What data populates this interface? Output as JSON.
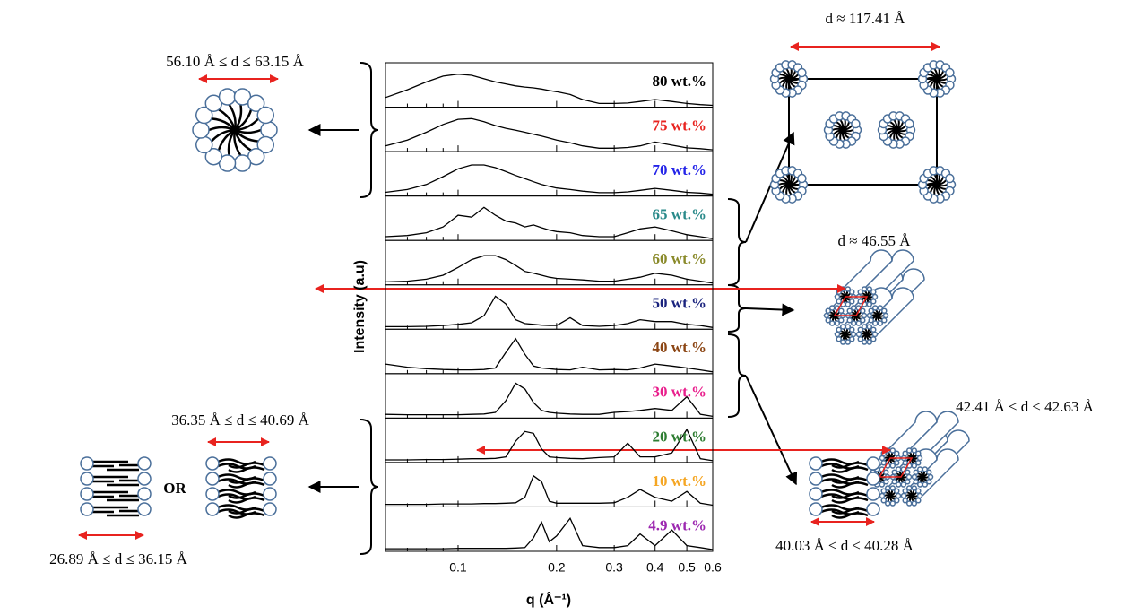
{
  "chart_data": {
    "type": "line",
    "x_label": "q (Å⁻¹)",
    "y_label": "Intensity (a.u)",
    "log_x": true,
    "xlim": [
      0.06,
      0.6
    ],
    "xticks": [
      0.1,
      0.2,
      0.3,
      0.4,
      0.5,
      0.6
    ],
    "minor_xticks": [
      0.07,
      0.08,
      0.09
    ],
    "ylim": [
      0,
      1
    ],
    "x": [
      0.06,
      0.07,
      0.08,
      0.09,
      0.1,
      0.11,
      0.12,
      0.13,
      0.14,
      0.15,
      0.16,
      0.17,
      0.18,
      0.19,
      0.2,
      0.22,
      0.24,
      0.27,
      0.3,
      0.33,
      0.36,
      0.4,
      0.45,
      0.5,
      0.55,
      0.6
    ],
    "series": [
      {
        "name": "80 wt.%",
        "color": "#000000",
        "values": [
          0.2,
          0.4,
          0.6,
          0.75,
          0.8,
          0.77,
          0.68,
          0.6,
          0.55,
          0.5,
          0.47,
          0.45,
          0.42,
          0.38,
          0.35,
          0.28,
          0.15,
          0.05,
          0.05,
          0.06,
          0.1,
          0.15,
          0.1,
          0.05,
          0.02,
          0
        ]
      },
      {
        "name": "75 wt.%",
        "color": "#e8231f",
        "values": [
          0.1,
          0.25,
          0.45,
          0.65,
          0.78,
          0.8,
          0.72,
          0.62,
          0.55,
          0.5,
          0.45,
          0.4,
          0.35,
          0.3,
          0.25,
          0.18,
          0.1,
          0.04,
          0.04,
          0.06,
          0.1,
          0.2,
          0.12,
          0.05,
          0.03,
          0
        ]
      },
      {
        "name": "70 wt.%",
        "color": "#2323e8",
        "values": [
          0.05,
          0.12,
          0.25,
          0.45,
          0.65,
          0.75,
          0.75,
          0.68,
          0.58,
          0.48,
          0.4,
          0.32,
          0.25,
          0.2,
          0.16,
          0.12,
          0.08,
          0.04,
          0.04,
          0.06,
          0.1,
          0.15,
          0.1,
          0.05,
          0.03,
          0
        ]
      },
      {
        "name": "65 wt.%",
        "color": "#2a8a8a",
        "values": [
          0.05,
          0.08,
          0.15,
          0.3,
          0.6,
          0.55,
          0.8,
          0.6,
          0.45,
          0.4,
          0.3,
          0.35,
          0.28,
          0.22,
          0.18,
          0.15,
          0.08,
          0.05,
          0.05,
          0.15,
          0.25,
          0.3,
          0.2,
          0.1,
          0.05,
          0
        ]
      },
      {
        "name": "60 wt.%",
        "color": "#8a8a2a",
        "values": [
          0.03,
          0.05,
          0.1,
          0.2,
          0.4,
          0.6,
          0.7,
          0.7,
          0.6,
          0.45,
          0.3,
          0.25,
          0.2,
          0.15,
          0.12,
          0.1,
          0.08,
          0.05,
          0.05,
          0.1,
          0.15,
          0.25,
          0.2,
          0.1,
          0.05,
          0
        ]
      },
      {
        "name": "50 wt.%",
        "color": "#1a237e",
        "values": [
          0.02,
          0.02,
          0.03,
          0.05,
          0.08,
          0.12,
          0.3,
          0.8,
          0.6,
          0.2,
          0.1,
          0.08,
          0.06,
          0.05,
          0.05,
          0.25,
          0.05,
          0.03,
          0.05,
          0.1,
          0.2,
          0.15,
          0.15,
          0.08,
          0.05,
          0
        ]
      },
      {
        "name": "40 wt.%",
        "color": "#8b4513",
        "values": [
          0.2,
          0.12,
          0.08,
          0.06,
          0.05,
          0.05,
          0.06,
          0.1,
          0.5,
          0.85,
          0.45,
          0.15,
          0.1,
          0.08,
          0.06,
          0.05,
          0.12,
          0.05,
          0.06,
          0.05,
          0.1,
          0.2,
          0.15,
          0.1,
          0.05,
          0
        ]
      },
      {
        "name": "30 wt.%",
        "color": "#e91e8c",
        "values": [
          0.05,
          0.04,
          0.04,
          0.04,
          0.04,
          0.05,
          0.06,
          0.1,
          0.4,
          0.85,
          0.7,
          0.35,
          0.15,
          0.1,
          0.08,
          0.06,
          0.05,
          0.05,
          0.1,
          0.12,
          0.15,
          0.2,
          0.15,
          0.5,
          0.05,
          0
        ]
      },
      {
        "name": "20 wt.%",
        "color": "#2e7d32",
        "values": [
          0.02,
          0.02,
          0.03,
          0.03,
          0.04,
          0.05,
          0.05,
          0.06,
          0.1,
          0.5,
          0.75,
          0.7,
          0.3,
          0.1,
          0.08,
          0.06,
          0.05,
          0.08,
          0.1,
          0.45,
          0.1,
          0.1,
          0.2,
          0.8,
          0.05,
          0
        ]
      },
      {
        "name": "10 wt.%",
        "color": "#f5a623",
        "values": [
          0.02,
          0.02,
          0.02,
          0.03,
          0.03,
          0.03,
          0.04,
          0.04,
          0.05,
          0.06,
          0.2,
          0.75,
          0.6,
          0.1,
          0.05,
          0.05,
          0.05,
          0.05,
          0.06,
          0.2,
          0.4,
          0.2,
          0.1,
          0.35,
          0.05,
          0
        ]
      },
      {
        "name": "4.9 wt.%",
        "color": "#9c27b0",
        "values": [
          0.02,
          0.02,
          0.02,
          0.02,
          0.03,
          0.03,
          0.03,
          0.03,
          0.03,
          0.04,
          0.05,
          0.3,
          0.7,
          0.2,
          0.35,
          0.8,
          0.1,
          0.05,
          0.05,
          0.1,
          0.4,
          0.1,
          0.5,
          0.1,
          0.05,
          0
        ]
      }
    ],
    "annotations": [
      "56.10 Å  ≤ d  ≤ 63.15 Å",
      "d ≈ 117.41 Å",
      "d  ≈ 46.55 Å",
      "42.41 Å  ≤ d  ≤ 42.63 Å",
      "36.35 Å  ≤ d  ≤ 40.69 Å",
      "OR",
      "26.89 Å  ≤ d  ≤ 36.15 Å",
      "40.03 Å  ≤ d  ≤ 40.28 Å"
    ]
  }
}
